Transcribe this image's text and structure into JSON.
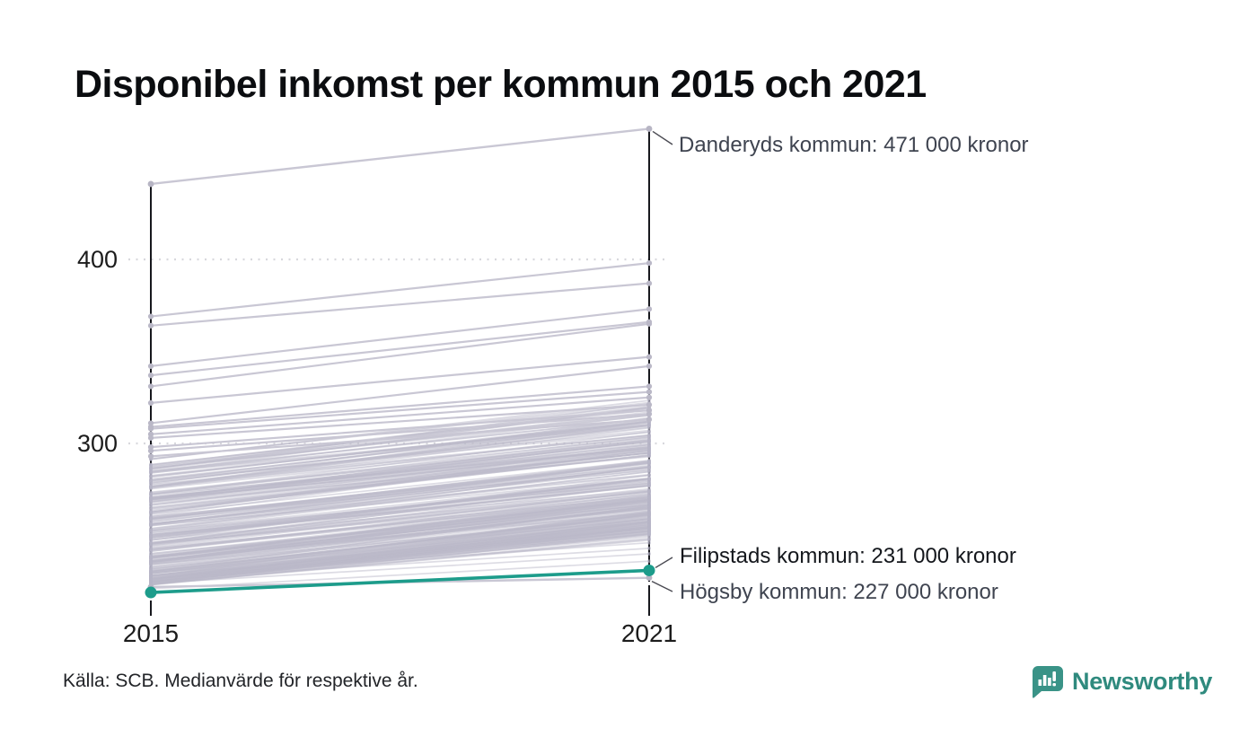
{
  "title": "Disponibel inkomst per kommun 2015 och 2021",
  "source": "Källa: SCB. Medianvärde för respektive år.",
  "brand": {
    "name": "Newsworthy",
    "icon": "bar-chart-speech-bubble-icon",
    "text_color": "#2f8a7e",
    "icon_color": "#3a9387"
  },
  "labels": {
    "y400": "400",
    "y300": "300",
    "x2015": "2015",
    "x2021": "2021"
  },
  "chart_data": {
    "type": "line",
    "subtype": "slope-chart",
    "x_categories": [
      "2015",
      "2021"
    ],
    "unit": "tusen kronor (medianvärde, disponibel inkomst)",
    "yticks": [
      300,
      400
    ],
    "ylim": [
      215,
      480
    ],
    "grid": "dotted horizontal lines at yticks",
    "legend": "none",
    "line_color_default": "#bbb9c9",
    "highlight_color": "#1d9c8b",
    "axis_color": "#17181d",
    "annotations": [
      {
        "series": "Danderyds kommun",
        "label": "Danderyds kommun: 471 000 kronor",
        "value_2021": 471,
        "highlighted": false
      },
      {
        "series": "Filipstads kommun",
        "label": "Filipstads kommun: 231 000 kronor",
        "value_2021": 231,
        "highlighted": true
      },
      {
        "series": "Högsby kommun",
        "label": "Högsby kommun: 227 000 kronor",
        "value_2021": 227,
        "highlighted": false
      }
    ],
    "highlight_series": {
      "name": "Filipstads kommun",
      "values": [
        219,
        231
      ]
    },
    "named_series": [
      {
        "name": "Danderyds kommun",
        "values": [
          441,
          471
        ]
      },
      {
        "name": "Högsby kommun",
        "values": [
          222,
          227
        ]
      }
    ],
    "upper_lines": [
      [
        369,
        398
      ],
      [
        364,
        387
      ],
      [
        342,
        373
      ],
      [
        337,
        366
      ],
      [
        331,
        365
      ],
      [
        322,
        347
      ],
      [
        311,
        342
      ],
      [
        309,
        331
      ],
      [
        308,
        328
      ],
      [
        305,
        325
      ],
      [
        303,
        321
      ],
      [
        298,
        318
      ],
      [
        296,
        316
      ],
      [
        293,
        313
      ]
    ],
    "low_lines": [
      [
        221,
        236
      ],
      [
        224,
        240
      ],
      [
        226,
        243
      ],
      [
        228,
        246
      ]
    ],
    "band": {
      "description": "tät bunt av övriga kommuner (~290 st)",
      "count": 252,
      "v2015_min": 223,
      "v2015_max": 292,
      "gain_min": 23,
      "gain_max": 37
    }
  }
}
